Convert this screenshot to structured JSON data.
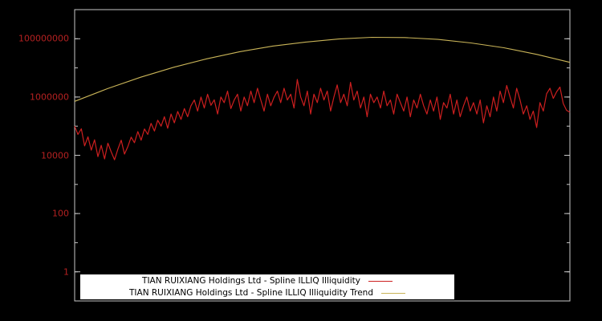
{
  "colors": {
    "background": "#000000",
    "frame": "#c8c8c8",
    "tick_label": "#b42121",
    "series_illiq": "#cc1f1f",
    "series_trend": "#c9b458",
    "legend_bg": "#ffffff",
    "legend_text": "#000000"
  },
  "legend": {
    "entries": [
      {
        "label": "TIAN RUIXIANG Holdings Ltd - Spline ILLIQ Illiquidity"
      },
      {
        "label": "TIAN RUIXIANG Holdings Ltd - Spline ILLIQ Illiquidity Trend"
      }
    ]
  },
  "chart_data": {
    "type": "line",
    "title": "",
    "xlabel": "",
    "ylabel": "",
    "y_scale": "log",
    "ylim": [
      0.1,
      1000000000
    ],
    "grid": false,
    "legend_position": "bottom-center",
    "y_ticks": [
      {
        "label": "100000000",
        "value": 100000000
      },
      {
        "label": "1000000",
        "value": 1000000
      },
      {
        "label": "10000",
        "value": 10000
      },
      {
        "label": "100",
        "value": 100
      },
      {
        "label": "1",
        "value": 1
      }
    ],
    "series": [
      {
        "name": "TIAN RUIXIANG Holdings Ltd - Spline ILLIQ Illiquidity",
        "color": "#cc1f1f",
        "values": [
          100000,
          52000,
          81000,
          21000,
          43000,
          15000,
          34000,
          9000,
          22000,
          7500,
          26000,
          13000,
          7000,
          16000,
          33000,
          11000,
          20000,
          42000,
          27000,
          65000,
          33000,
          80000,
          52000,
          125000,
          68000,
          160000,
          100000,
          210000,
          85000,
          260000,
          130000,
          320000,
          170000,
          400000,
          210000,
          500000,
          790000,
          330000,
          1000000,
          420000,
          1250000,
          520000,
          800000,
          260000,
          1000000,
          640000,
          1600000,
          400000,
          790000,
          1250000,
          330000,
          1000000,
          500000,
          1600000,
          640000,
          2000000,
          790000,
          330000,
          1250000,
          500000,
          1000000,
          1600000,
          640000,
          2000000,
          790000,
          1250000,
          420000,
          4000000,
          1000000,
          500000,
          1600000,
          260000,
          1250000,
          640000,
          2000000,
          790000,
          1600000,
          330000,
          1000000,
          2600000,
          640000,
          1250000,
          500000,
          3200000,
          790000,
          1600000,
          420000,
          1000000,
          210000,
          1250000,
          640000,
          1000000,
          420000,
          1600000,
          500000,
          790000,
          260000,
          1250000,
          640000,
          330000,
          1000000,
          210000,
          790000,
          420000,
          1250000,
          500000,
          260000,
          790000,
          330000,
          1000000,
          170000,
          640000,
          420000,
          1250000,
          260000,
          790000,
          210000,
          500000,
          1000000,
          330000,
          640000,
          260000,
          790000,
          130000,
          500000,
          210000,
          1000000,
          330000,
          1600000,
          640000,
          2500000,
          1000000,
          420000,
          2000000,
          790000,
          260000,
          500000,
          170000,
          330000,
          90000,
          640000,
          330000,
          1300000,
          2000000,
          900000,
          1500000,
          2200000,
          600000,
          350000,
          300000
        ]
      },
      {
        "name": "TIAN RUIXIANG Holdings Ltd - Spline ILLIQ Illiquidity Trend",
        "color": "#c9b458",
        "values": [
          710000,
          1950000,
          4800000,
          10500000,
          20500000,
          36000000,
          56000000,
          77000000,
          98000000,
          112000000,
          110000000,
          95000000,
          72000000,
          49000000,
          29000000,
          15500000
        ]
      }
    ]
  }
}
